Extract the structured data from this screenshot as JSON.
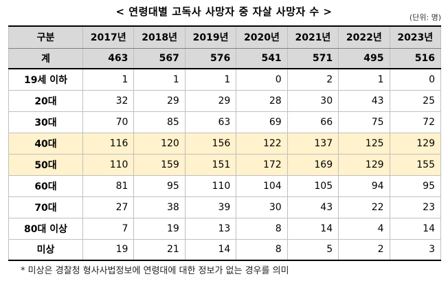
{
  "title": "< 연령대별 고독사 사망자 중 자살 사망자 수 >",
  "unit": "(단위: 명)",
  "table": {
    "headers": [
      "구분",
      "2017년",
      "2018년",
      "2019년",
      "2020년",
      "2021년",
      "2022년",
      "2023년"
    ],
    "total": {
      "label": "계",
      "values": [
        "463",
        "567",
        "576",
        "541",
        "571",
        "495",
        "516"
      ]
    },
    "rows": [
      {
        "label": "19세 이하",
        "values": [
          "1",
          "1",
          "1",
          "0",
          "2",
          "1",
          "0"
        ],
        "highlight": false
      },
      {
        "label": "20대",
        "values": [
          "32",
          "29",
          "29",
          "28",
          "30",
          "43",
          "25"
        ],
        "highlight": false
      },
      {
        "label": "30대",
        "values": [
          "70",
          "85",
          "63",
          "69",
          "66",
          "75",
          "72"
        ],
        "highlight": false
      },
      {
        "label": "40대",
        "values": [
          "116",
          "120",
          "156",
          "122",
          "137",
          "125",
          "129"
        ],
        "highlight": true
      },
      {
        "label": "50대",
        "values": [
          "110",
          "159",
          "151",
          "172",
          "169",
          "129",
          "155"
        ],
        "highlight": true
      },
      {
        "label": "60대",
        "values": [
          "81",
          "95",
          "110",
          "104",
          "105",
          "94",
          "95"
        ],
        "highlight": false
      },
      {
        "label": "70대",
        "values": [
          "27",
          "38",
          "39",
          "30",
          "43",
          "22",
          "23"
        ],
        "highlight": false
      },
      {
        "label": "80대 이상",
        "values": [
          "7",
          "19",
          "13",
          "8",
          "14",
          "4",
          "14"
        ],
        "highlight": false
      },
      {
        "label": "미상",
        "values": [
          "19",
          "21",
          "14",
          "8",
          "5",
          "2",
          "3"
        ],
        "highlight": false
      }
    ]
  },
  "colors": {
    "header_bg": "#d9d9d9",
    "highlight_bg": "#fff2cc"
  },
  "footnote": "* 미상은 경찰청 형사사법정보에 연령대에 대한 정보가 없는 경우를 의미"
}
